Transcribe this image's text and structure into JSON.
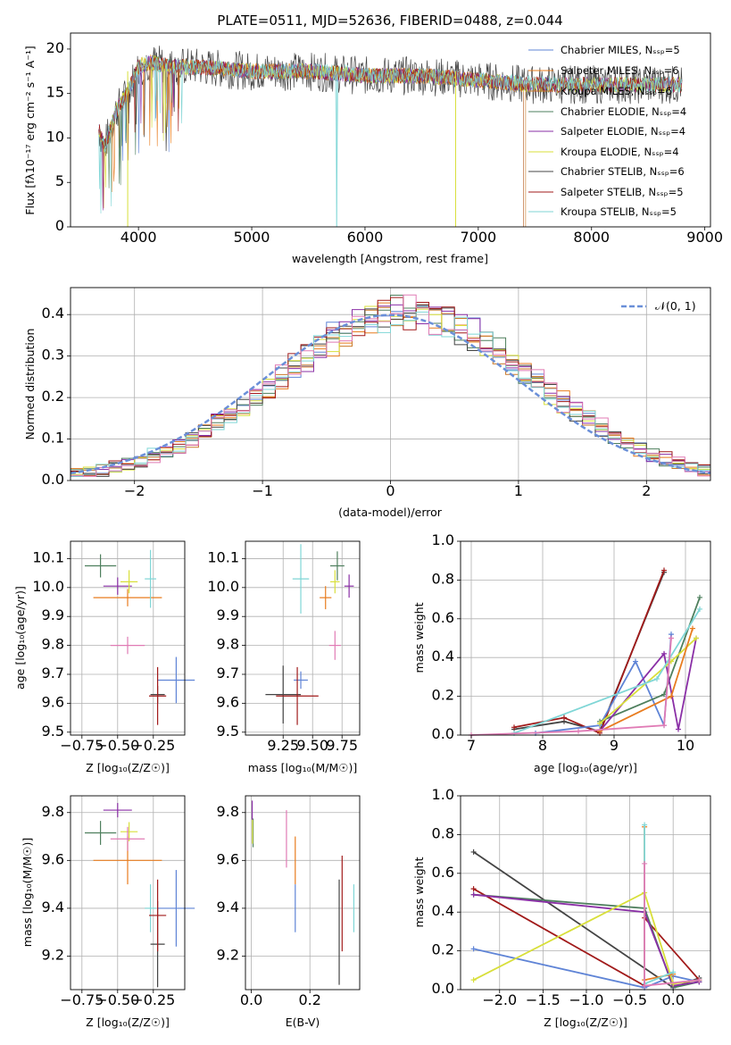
{
  "figure": {
    "colors": [
      "#5f84d6",
      "#e87c1f",
      "#c97a2a",
      "#4e7f5d",
      "#8a2fa6",
      "#d8df3a",
      "#444444",
      "#a11a1a",
      "#7fd6d6"
    ],
    "pink": "#e07bb5"
  },
  "chart_data": [
    {
      "id": "spectrum",
      "type": "line",
      "title": "PLATE=0511, MJD=52636, FIBERID=0488, z=0.044",
      "xlabel": "wavelength [Angstrom, rest frame]",
      "ylabel": "Flux [fλ10⁻¹⁷ erg cm⁻² s⁻¹ A⁻¹]",
      "xlim": [
        3400,
        9050
      ],
      "ylim": [
        0,
        21.8
      ],
      "xticks": [
        4000,
        5000,
        6000,
        7000,
        8000,
        9000
      ],
      "yticks": [
        0,
        5,
        10,
        15,
        20
      ],
      "grid": false,
      "legend_position": "top-right",
      "legend": [
        "Chabrier MILES, Nₛₛₚ=5",
        "Salpeter MILES, Nₛₛₚ=6",
        "Kroupa MILES, Nₛₛₚ=6",
        "Chabrier ELODIE, Nₛₛₚ=4",
        "Salpeter ELODIE, Nₛₛₚ=4",
        "Kroupa ELODIE, Nₛₛₚ=4",
        "Chabrier STELIB, Nₛₛₚ=6",
        "Salpeter STELIB, Nₛₛₚ=5",
        "Kroupa STELIB, Nₛₛₚ=5"
      ],
      "series": [
        {
          "name": "Chabrier MILES, NSSP=5",
          "x": [
            3650,
            3700,
            3800,
            3900,
            4000,
            4100,
            4300,
            4500,
            5000,
            5500,
            6000,
            6500,
            7000,
            7400
          ],
          "y": [
            11,
            9,
            13,
            15,
            18,
            18.5,
            18,
            18,
            17.5,
            17.5,
            17,
            17,
            16.5,
            16
          ]
        },
        {
          "name": "Kroupa STELIB, NSSP=5",
          "x": [
            3650,
            3700,
            3800,
            3900,
            4000,
            4100,
            4300,
            4500,
            5000,
            5500,
            5740,
            5750,
            5760,
            6000,
            6500,
            7000,
            7500,
            8000,
            8500,
            8800
          ],
          "y": [
            11,
            9,
            13,
            15,
            18,
            18.5,
            18,
            18,
            17.5,
            17.5,
            17.5,
            0,
            17.5,
            17,
            17,
            16.5,
            16.2,
            16,
            16,
            16
          ]
        }
      ]
    },
    {
      "id": "residuals",
      "type": "line",
      "xlabel": "(data-model)/error",
      "ylabel": "Normed distribution",
      "xlim": [
        -2.5,
        2.5
      ],
      "ylim": [
        0,
        0.465
      ],
      "xticks": [
        -2,
        -1,
        0,
        1,
        2
      ],
      "yticks": [
        0.0,
        0.1,
        0.2,
        0.3,
        0.4
      ],
      "grid": true,
      "legend_position": "top-right",
      "legend": [
        "𝒩(0, 1)"
      ],
      "series": [
        {
          "name": "𝒩(0, 1)",
          "type": "gaussian",
          "mu": 0,
          "sigma": 1
        }
      ]
    },
    {
      "id": "age-vs-Z",
      "type": "scatter",
      "xlabel": "Z [log₁₀(Z/Z☉)]",
      "ylabel": "age  [log₁₀(age/yr)]",
      "xlim": [
        -0.83,
        -0.03
      ],
      "ylim": [
        9.49,
        10.16
      ],
      "xticks": [
        -0.75,
        -0.5,
        -0.25
      ],
      "yticks": [
        9.5,
        9.6,
        9.7,
        9.8,
        9.9,
        10.0,
        10.1
      ],
      "grid": true,
      "points": [
        {
          "x": -0.62,
          "y": 10.075,
          "xerr": 0.11,
          "yerr": 0.04
        },
        {
          "x": -0.5,
          "y": 10.005,
          "xerr": 0.1,
          "yerr": 0.03
        },
        {
          "x": -0.42,
          "y": 10.02,
          "xerr": 0.06,
          "yerr": 0.04
        },
        {
          "x": -0.43,
          "y": 9.965,
          "xerr": 0.24,
          "yerr": 0.03
        },
        {
          "x": -0.27,
          "y": 10.03,
          "xerr": 0.04,
          "yerr": 0.1
        },
        {
          "x": -0.43,
          "y": 9.8,
          "xerr": 0.12,
          "yerr": 0.03
        },
        {
          "x": -0.09,
          "y": 9.68,
          "xerr": 0.13,
          "yerr": 0.08
        },
        {
          "x": -0.22,
          "y": 9.63,
          "xerr": 0.05,
          "yerr": 0.03
        },
        {
          "x": -0.22,
          "y": 9.625,
          "xerr": 0.06,
          "yerr": 0.1
        }
      ]
    },
    {
      "id": "age-vs-mass",
      "type": "scatter",
      "xlabel": "mass [log₁₀(M/M☉)]",
      "ylabel": "",
      "xlim": [
        8.93,
        9.9
      ],
      "ylim": [
        9.49,
        10.16
      ],
      "xticks": [
        9.25,
        9.5,
        9.75
      ],
      "yticks": [
        9.5,
        9.6,
        9.7,
        9.8,
        9.9,
        10.0,
        10.1
      ],
      "grid": true,
      "points": [
        {
          "x": 9.71,
          "y": 10.075,
          "xerr": 0.06,
          "yerr": 0.05
        },
        {
          "x": 9.81,
          "y": 10.005,
          "xerr": 0.04,
          "yerr": 0.04
        },
        {
          "x": 9.69,
          "y": 10.02,
          "xerr": 0.04,
          "yerr": 0.04
        },
        {
          "x": 9.61,
          "y": 9.965,
          "xerr": 0.05,
          "yerr": 0.04
        },
        {
          "x": 9.4,
          "y": 10.03,
          "xerr": 0.07,
          "yerr": 0.12
        },
        {
          "x": 9.69,
          "y": 9.8,
          "xerr": 0.05,
          "yerr": 0.05
        },
        {
          "x": 9.4,
          "y": 9.68,
          "xerr": 0.06,
          "yerr": 0.03
        },
        {
          "x": 9.25,
          "y": 9.63,
          "xerr": 0.15,
          "yerr": 0.1
        },
        {
          "x": 9.37,
          "y": 9.625,
          "xerr": 0.18,
          "yerr": 0.1
        }
      ]
    },
    {
      "id": "weight-vs-age",
      "type": "line",
      "xlabel": "age  [log₁₀(age/yr)]",
      "ylabel": "mass weight",
      "xlim": [
        6.85,
        10.35
      ],
      "ylim": [
        0,
        1.0
      ],
      "xticks": [
        7,
        8,
        9,
        10
      ],
      "yticks": [
        0.0,
        0.2,
        0.4,
        0.6,
        0.8,
        1.0
      ],
      "grid": true,
      "series": [
        {
          "x": [
            7.6,
            8.3,
            8.8,
            9.7
          ],
          "y": [
            0.03,
            0.07,
            0.02,
            0.84
          ]
        },
        {
          "x": [
            7.6,
            8.3,
            8.8,
            9.7
          ],
          "y": [
            0.04,
            0.09,
            0.01,
            0.85
          ]
        },
        {
          "x": [
            7.9,
            8.8,
            9.3,
            9.7,
            9.8
          ],
          "y": [
            0.01,
            0.05,
            0.38,
            0.05,
            0.52
          ]
        },
        {
          "x": [
            8.8,
            9.7,
            10.2
          ],
          "y": [
            0.07,
            0.21,
            0.71
          ]
        },
        {
          "x": [
            8.8,
            9.7,
            9.9,
            10.15
          ],
          "y": [
            0.02,
            0.42,
            0.03,
            0.5
          ]
        },
        {
          "x": [
            8.8,
            9.8,
            10.15
          ],
          "y": [
            0.06,
            0.38,
            0.5
          ]
        },
        {
          "x": [
            8.8,
            9.8,
            10.1
          ],
          "y": [
            0.02,
            0.2,
            0.55
          ]
        },
        {
          "x": [
            7.6,
            9.6,
            10.2
          ],
          "y": [
            0.01,
            0.29,
            0.65
          ]
        },
        {
          "x": [
            7.0,
            8.5,
            9.7,
            9.8
          ],
          "y": [
            0.0,
            0.02,
            0.05,
            0.5
          ]
        }
      ]
    },
    {
      "id": "mass-vs-Z",
      "type": "scatter",
      "xlabel": "Z [log₁₀(Z/Z☉)]",
      "ylabel": "mass [log₁₀(M/M☉)]",
      "xlim": [
        -0.83,
        -0.03
      ],
      "ylim": [
        9.06,
        9.87
      ],
      "xticks": [
        -0.75,
        -0.5,
        -0.25
      ],
      "yticks": [
        9.2,
        9.4,
        9.6,
        9.8
      ],
      "grid": true,
      "points": [
        {
          "x": -0.62,
          "y": 9.715,
          "xerr": 0.11,
          "yerr": 0.05
        },
        {
          "x": -0.5,
          "y": 9.81,
          "xerr": 0.1,
          "yerr": 0.03
        },
        {
          "x": -0.42,
          "y": 9.72,
          "xerr": 0.06,
          "yerr": 0.04
        },
        {
          "x": -0.43,
          "y": 9.6,
          "xerr": 0.24,
          "yerr": 0.1
        },
        {
          "x": -0.27,
          "y": 9.4,
          "xerr": 0.04,
          "yerr": 0.1
        },
        {
          "x": -0.43,
          "y": 9.69,
          "xerr": 0.12,
          "yerr": 0.05
        },
        {
          "x": -0.09,
          "y": 9.4,
          "xerr": 0.13,
          "yerr": 0.16
        },
        {
          "x": -0.22,
          "y": 9.25,
          "xerr": 0.05,
          "yerr": 0.18
        },
        {
          "x": -0.22,
          "y": 9.37,
          "xerr": 0.06,
          "yerr": 0.15
        }
      ]
    },
    {
      "id": "mass-vs-EBV",
      "type": "scatter",
      "xlabel": "E(B-V)",
      "ylabel": "",
      "xlim": [
        -0.02,
        0.37
      ],
      "ylim": [
        9.06,
        9.87
      ],
      "xticks": [
        0.0,
        0.2
      ],
      "yticks": [
        9.2,
        9.4,
        9.6,
        9.8
      ],
      "grid": true,
      "points": [
        {
          "x": 0.006,
          "y": 9.715,
          "yerr": 0.06
        },
        {
          "x": 0.003,
          "y": 9.81,
          "yerr": 0.04
        },
        {
          "x": 0.004,
          "y": 9.72,
          "yerr": 0.05
        },
        {
          "x": 0.15,
          "y": 9.6,
          "yerr": 0.1
        },
        {
          "x": 0.35,
          "y": 9.4,
          "yerr": 0.1
        },
        {
          "x": 0.12,
          "y": 9.69,
          "yerr": 0.12
        },
        {
          "x": 0.15,
          "y": 9.4,
          "yerr": 0.1
        },
        {
          "x": 0.3,
          "y": 9.3,
          "yerr": 0.22
        },
        {
          "x": 0.31,
          "y": 9.42,
          "yerr": 0.2
        }
      ]
    },
    {
      "id": "weight-vs-Z",
      "type": "line",
      "xlabel": "Z [log₁₀(Z/Z☉)]",
      "ylabel": "mass weight",
      "xlim": [
        -2.45,
        0.43
      ],
      "ylim": [
        0,
        1.0
      ],
      "xticks": [
        -2.0,
        -1.5,
        -1.0,
        -0.5,
        0.0
      ],
      "yticks": [
        0.0,
        0.2,
        0.4,
        0.6,
        0.8,
        1.0
      ],
      "grid": true,
      "series": [
        {
          "x": [
            -2.3,
            0.0,
            0.3
          ],
          "y": [
            0.71,
            0.01,
            0.06
          ]
        },
        {
          "x": [
            -2.3,
            -0.33,
            -0.33,
            0.3
          ],
          "y": [
            0.52,
            0.02,
            0.37,
            0.05
          ]
        },
        {
          "x": [
            -2.3,
            -0.33,
            0.0,
            0.3
          ],
          "y": [
            0.21,
            0.01,
            0.07,
            0.04
          ]
        },
        {
          "x": [
            -2.3,
            -0.33,
            0.0,
            0.3
          ],
          "y": [
            0.49,
            0.42,
            0.01,
            0.04
          ]
        },
        {
          "x": [
            -2.3,
            -0.33,
            0.0,
            0.3
          ],
          "y": [
            0.49,
            0.4,
            0.02,
            0.04
          ]
        },
        {
          "x": [
            -2.3,
            -0.33,
            0.0,
            0.3
          ],
          "y": [
            0.05,
            0.5,
            0.03,
            0.05
          ]
        },
        {
          "x": [
            -0.33,
            -0.33,
            0.0
          ],
          "y": [
            0.84,
            0.05,
            0.08
          ]
        },
        {
          "x": [
            -0.33,
            -0.33,
            0.0
          ],
          "y": [
            0.85,
            0.03,
            0.09
          ]
        },
        {
          "x": [
            -0.33,
            -0.33,
            0.3
          ],
          "y": [
            0.65,
            0.02,
            0.05
          ]
        }
      ]
    }
  ]
}
